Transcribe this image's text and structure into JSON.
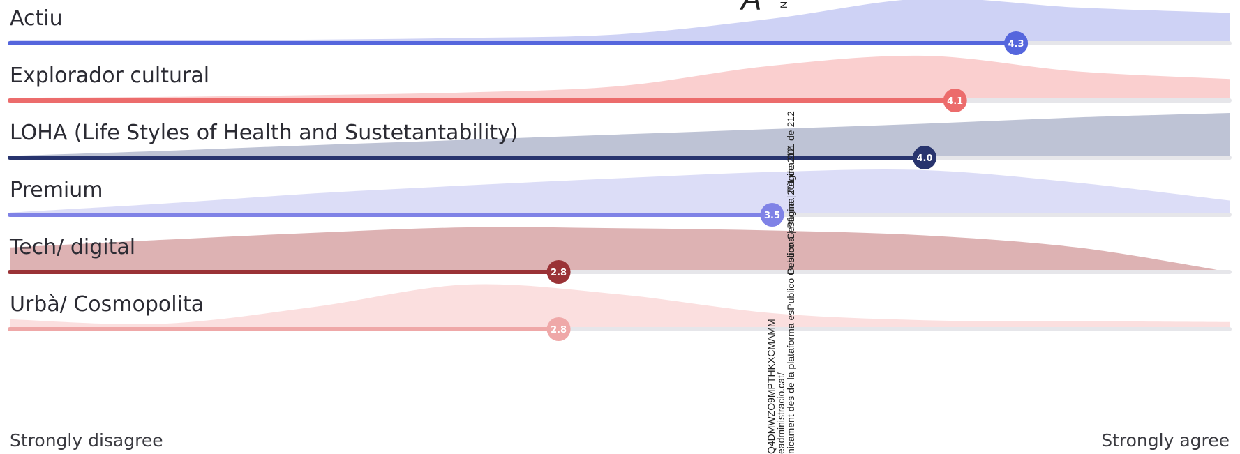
{
  "chart_data": {
    "type": "ridgeline",
    "xlim": [
      1,
      5
    ],
    "scale_left_label": "Strongly disagree",
    "scale_right_label": "Strongly agree",
    "rows": [
      {
        "label": "Actiu",
        "mean": 4.3,
        "mean_label": "4.3",
        "color": "#5566dd",
        "fill": "#c9cdf4",
        "density": [
          0.06,
          0.07,
          0.08,
          0.12,
          0.2,
          0.55,
          1.0,
          0.8,
          0.68
        ]
      },
      {
        "label": "Explorador cultural",
        "mean": 4.1,
        "mean_label": "4.1",
        "color": "#ec6c6c",
        "fill": "#f9caca",
        "density": [
          0.06,
          0.08,
          0.12,
          0.18,
          0.32,
          0.78,
          1.0,
          0.65,
          0.48
        ]
      },
      {
        "label": "LOHA (Life Styles of Health and Sustetantability)",
        "mean": 4.0,
        "mean_label": "4.0",
        "color": "#28346e",
        "fill": "#b7bdd0",
        "density": [
          0.04,
          0.15,
          0.28,
          0.4,
          0.52,
          0.64,
          0.76,
          0.9,
          1.0
        ]
      },
      {
        "label": "Premium",
        "mean": 3.5,
        "mean_label": "3.5",
        "color": "#7f82e6",
        "fill": "#d8d9f6",
        "density": [
          0.05,
          0.25,
          0.48,
          0.66,
          0.82,
          0.96,
          1.0,
          0.72,
          0.32
        ]
      },
      {
        "label": "Tech/ digital",
        "mean": 2.8,
        "mean_label": "2.8",
        "color": "#9a3236",
        "fill": "#d9aaab",
        "density": [
          0.55,
          0.72,
          0.88,
          1.0,
          0.98,
          0.93,
          0.82,
          0.55,
          0.0
        ]
      },
      {
        "label": "Urbà/ Cosmopolita",
        "mean": 2.8,
        "mean_label": "2.8",
        "color": "#efa8a8",
        "fill": "#fbdcdc",
        "density": [
          0.22,
          0.12,
          0.5,
          1.0,
          0.78,
          0.36,
          0.2,
          0.18,
          0.16
        ]
      }
    ]
  },
  "watermark": {
    "vertical_lines": [
      "Publico Gestiona | Pàgina 201 de 212",
      "nicament des de la plataforma esPublico Gestiona | Pàgina 201 de 212",
      "eadministracio.cat/",
      "Q4DMWZO9MPTHKXCMAMM"
    ],
    "top_letter": "A",
    "top_small": "N"
  }
}
